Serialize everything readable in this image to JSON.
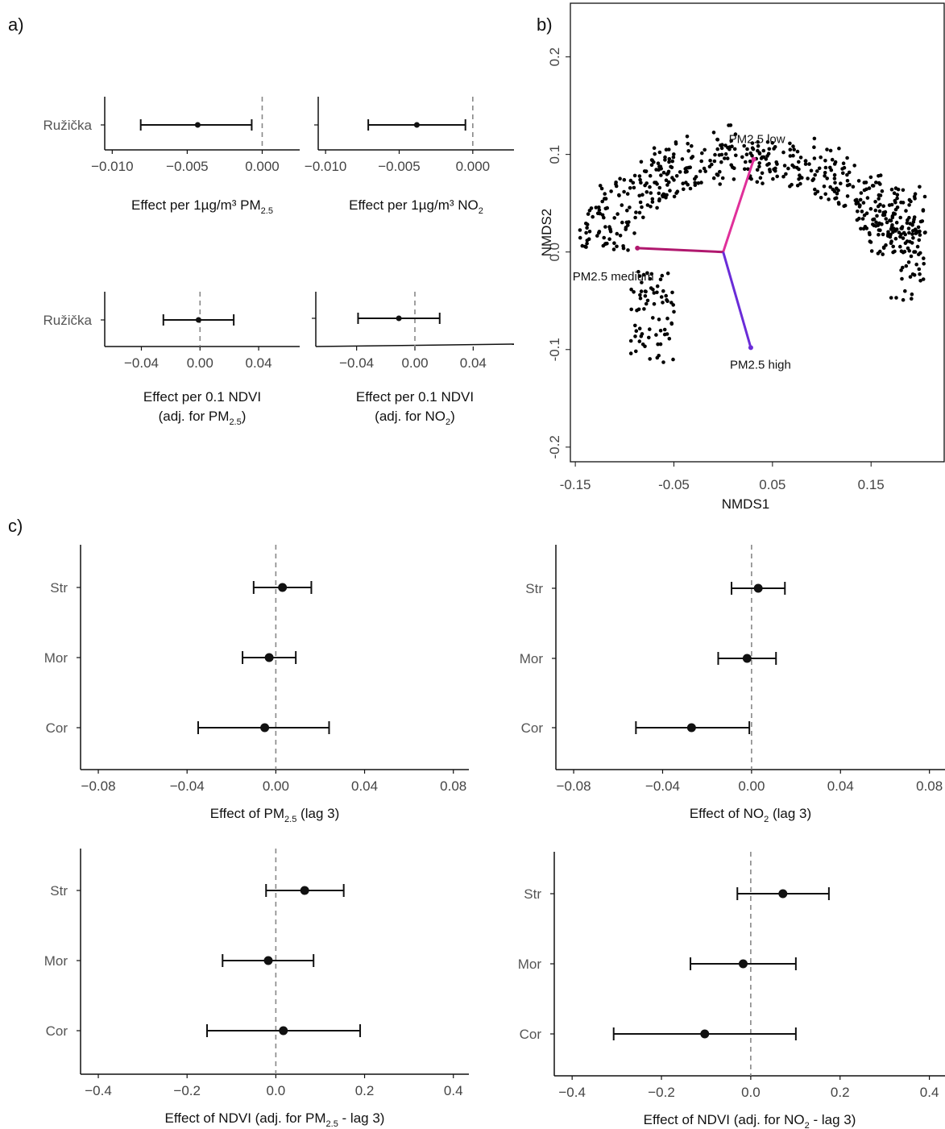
{
  "panels": {
    "a": "a)",
    "b": "b)",
    "c": "c)"
  },
  "chart_data": [
    {
      "id": "a1",
      "type": "forest",
      "categories": [
        "Ružička"
      ],
      "points": [
        {
          "category": "Ružička",
          "est": -0.0043,
          "lo": -0.0081,
          "hi": -0.0007
        }
      ],
      "xlim": [
        -0.0105,
        0.0025
      ],
      "xticks": [
        -0.01,
        -0.005,
        0.0
      ],
      "xtick_labels": [
        "−0.010",
        "−0.005",
        "0.000"
      ],
      "xlabel": "Effect per 1µg/m³ PM",
      "xlabel_sub": "2.5",
      "xlabel_suffix": "",
      "ref": 0
    },
    {
      "id": "a2",
      "type": "forest",
      "categories": [
        "Ružička"
      ],
      "points": [
        {
          "category": "Ružička",
          "est": -0.0038,
          "lo": -0.0071,
          "hi": -0.0005
        }
      ],
      "xlim": [
        -0.0105,
        0.0028
      ],
      "xticks": [
        -0.01,
        -0.005,
        0.0
      ],
      "xtick_labels": [
        "−0.010",
        "−0.005",
        "0.000"
      ],
      "xlabel": "Effect per 1µg/m³ NO",
      "xlabel_sub": "2",
      "xlabel_suffix": "",
      "ref": 0
    },
    {
      "id": "a3",
      "type": "forest",
      "categories": [
        "Ružička"
      ],
      "points": [
        {
          "category": "Ružička",
          "est": -0.001,
          "lo": -0.025,
          "hi": 0.023
        }
      ],
      "xlim": [
        -0.065,
        0.068
      ],
      "xticks": [
        -0.04,
        0.0,
        0.04
      ],
      "xtick_labels": [
        "−0.04",
        "0.00",
        "0.04"
      ],
      "xlabel": "Effect per 0.1 NDVI",
      "xlabel2": "(adj. for PM",
      "xlabel2_sub": "2.5",
      "xlabel2_suffix": ")",
      "ref": 0
    },
    {
      "id": "a4",
      "type": "forest",
      "categories": [
        "Ružička"
      ],
      "points": [
        {
          "category": "Ružička",
          "est": -0.011,
          "lo": -0.039,
          "hi": 0.017
        }
      ],
      "xlim": [
        -0.068,
        0.068
      ],
      "xticks": [
        -0.04,
        0.0,
        0.04
      ],
      "xtick_labels": [
        "−0.04",
        "0.00",
        "0.04"
      ],
      "xlabel": "Effect per 0.1 NDVI",
      "xlabel2": "(adj. for NO",
      "xlabel2_sub": "2",
      "xlabel2_suffix": ")",
      "ref": 0
    },
    {
      "id": "b",
      "type": "scatter",
      "xlabel": "NMDS1",
      "ylabel": "NMDS2",
      "xlim": [
        -0.155,
        0.225
      ],
      "ylim": [
        -0.215,
        0.255
      ],
      "xticks": [
        -0.15,
        -0.05,
        0.05,
        0.15
      ],
      "xtick_labels": [
        "-0.15",
        "-0.05",
        "0.05",
        "0.15"
      ],
      "yticks": [
        -0.2,
        -0.1,
        0.0,
        0.1,
        0.2
      ],
      "ytick_labels": [
        "-0.2",
        "-0.1",
        "0.0",
        "0.1",
        "0.2"
      ],
      "vectors": [
        {
          "label": "PM2.5 low",
          "x": 0.031,
          "y": 0.095,
          "color": "#e0309a"
        },
        {
          "label": "PM2.5 medium",
          "x": -0.087,
          "y": 0.004,
          "color": "#b0186e"
        },
        {
          "label": "PM2.5 high",
          "x": 0.028,
          "y": -0.098,
          "color": "#6a2cd8"
        }
      ],
      "vector_origin": {
        "x": 0.0,
        "y": 0.0
      }
    },
    {
      "id": "c1",
      "type": "forest",
      "categories": [
        "Str",
        "Mor",
        "Cor"
      ],
      "points": [
        {
          "category": "Str",
          "est": 0.003,
          "lo": -0.01,
          "hi": 0.016
        },
        {
          "category": "Mor",
          "est": -0.003,
          "lo": -0.015,
          "hi": 0.009
        },
        {
          "category": "Cor",
          "est": -0.005,
          "lo": -0.035,
          "hi": 0.024
        }
      ],
      "xlim": [
        -0.088,
        0.087
      ],
      "xticks": [
        -0.08,
        -0.04,
        0.0,
        0.04,
        0.08
      ],
      "xtick_labels": [
        "−0.08",
        "−0.04",
        "0.00",
        "0.04",
        "0.08"
      ],
      "xlabel": "Effect of PM",
      "xlabel_sub": "2.5",
      "xlabel_suffix": " (lag 3)",
      "ref": 0
    },
    {
      "id": "c2",
      "type": "forest",
      "categories": [
        "Str",
        "Mor",
        "Cor"
      ],
      "points": [
        {
          "category": "Str",
          "est": 0.003,
          "lo": -0.009,
          "hi": 0.015
        },
        {
          "category": "Mor",
          "est": -0.002,
          "lo": -0.015,
          "hi": 0.011
        },
        {
          "category": "Cor",
          "est": -0.027,
          "lo": -0.052,
          "hi": -0.001
        }
      ],
      "xlim": [
        -0.088,
        0.087
      ],
      "xticks": [
        -0.08,
        -0.04,
        0.0,
        0.04,
        0.08
      ],
      "xtick_labels": [
        "−0.08",
        "−0.04",
        "0.00",
        "0.04",
        "0.08"
      ],
      "xlabel": "Effect of NO",
      "xlabel_sub": "2",
      "xlabel_suffix": " (lag 3)",
      "ref": 0
    },
    {
      "id": "c3",
      "type": "forest",
      "categories": [
        "Str",
        "Mor",
        "Cor"
      ],
      "points": [
        {
          "category": "Str",
          "est": 0.065,
          "lo": -0.022,
          "hi": 0.153
        },
        {
          "category": "Mor",
          "est": -0.017,
          "lo": -0.12,
          "hi": 0.085
        },
        {
          "category": "Cor",
          "est": 0.017,
          "lo": -0.155,
          "hi": 0.19
        }
      ],
      "xlim": [
        -0.44,
        0.435
      ],
      "xticks": [
        -0.4,
        -0.2,
        0.0,
        0.2,
        0.4
      ],
      "xtick_labels": [
        "−0.4",
        "−0.2",
        "0.0",
        "0.2",
        "0.4"
      ],
      "xlabel": "Effect of NDVI (adj. for PM",
      "xlabel_sub": "2.5",
      "xlabel_suffix": " - lag 3)",
      "ref": 0
    },
    {
      "id": "c4",
      "type": "forest",
      "categories": [
        "Str",
        "Mor",
        "Cor"
      ],
      "points": [
        {
          "category": "Str",
          "est": 0.072,
          "lo": -0.03,
          "hi": 0.175
        },
        {
          "category": "Mor",
          "est": -0.017,
          "lo": -0.135,
          "hi": 0.101
        },
        {
          "category": "Cor",
          "est": -0.103,
          "lo": -0.307,
          "hi": 0.101
        }
      ],
      "xlim": [
        -0.44,
        0.435
      ],
      "xticks": [
        -0.4,
        -0.2,
        0.0,
        0.2,
        0.4
      ],
      "xtick_labels": [
        "−0.4",
        "−0.2",
        "0.0",
        "0.2",
        "0.4"
      ],
      "xlabel": "Effect of NDVI (adj. for NO",
      "xlabel_sub": "2",
      "xlabel_suffix": " - lag 3)",
      "ref": 0
    }
  ]
}
